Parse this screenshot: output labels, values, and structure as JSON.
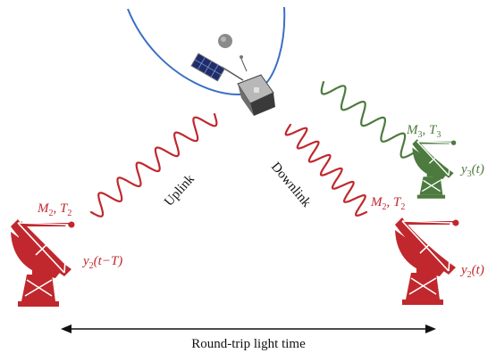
{
  "labels": {
    "uplink": "Uplink",
    "downlink": "Downlink",
    "round_trip": "Round-trip light time",
    "left_station": {
      "m": "M",
      "m_sub": "2",
      "sep": ", ",
      "t": "T",
      "t_sub": "2"
    },
    "right_station_red": {
      "m": "M",
      "m_sub": "2",
      "sep": ", ",
      "t": "T",
      "t_sub": "2"
    },
    "right_station_green": {
      "m": "M",
      "m_sub": "3",
      "sep": ", ",
      "t": "T",
      "t_sub": "3"
    },
    "left_signal": {
      "y": "y",
      "sub": "2",
      "arg": "(t−T)"
    },
    "right_signal_red": {
      "y": "y",
      "sub": "2",
      "arg": "(t)"
    },
    "right_signal_green": {
      "y": "y",
      "sub": "3",
      "arg": "(t)"
    }
  },
  "colors": {
    "red": "#c0282e",
    "green": "#4d7a3e",
    "orbit": "#3a6fc4",
    "text": "#111111"
  }
}
